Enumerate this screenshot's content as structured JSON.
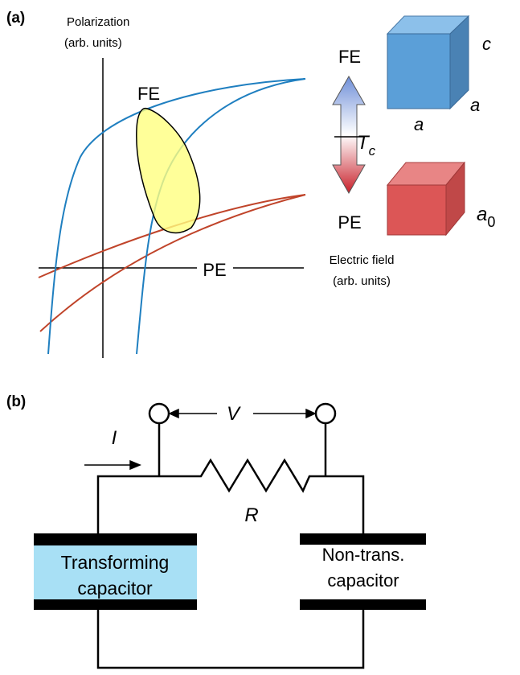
{
  "panel_a": {
    "label": "(a)",
    "y_axis_label": [
      "Polarization",
      "(arb. units)"
    ],
    "x_axis_label": [
      "Electric field",
      "(arb. units)"
    ],
    "curve_labels": {
      "fe": "FE",
      "pe": "PE"
    },
    "transition": {
      "top": "FE",
      "bottom": "PE",
      "temperature": "T",
      "temperature_subscript": "c"
    },
    "fe_cube": {
      "height": "c",
      "depth": "a",
      "width": "a"
    },
    "pe_cube": {
      "edge": "a",
      "edge_subscript": "0"
    }
  },
  "panel_b": {
    "label": "(b)",
    "current": "I",
    "voltage": "V",
    "resistor": "R",
    "transforming_capacitor": [
      "Transforming",
      "capacitor"
    ],
    "non_transforming_capacitor": [
      "Non-trans.",
      "capacitor"
    ]
  }
}
